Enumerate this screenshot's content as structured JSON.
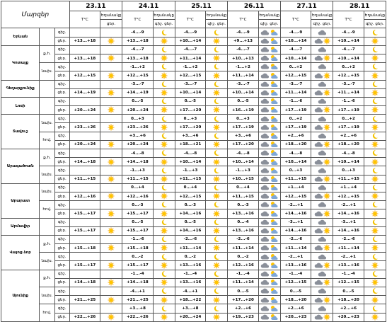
{
  "table": {
    "region_label": "Մարզեր",
    "days": [
      "23.11",
      "24.11",
      "25.11",
      "26.11",
      "27.11",
      "28.11"
    ],
    "temp_label": "T°C",
    "weather_label": "Եղանակը",
    "night_label": "գիշ.",
    "day_label": "ցեր.",
    "groups": [
      {
        "region": "Երևան",
        "subs": [
          {
            "night": [
              null,
              "-4...-9",
              "-4...-9",
              "-4...-9",
              "-4...-9",
              "-4...-9"
            ],
            "day": [
              "+13...+18",
              "+13...+18",
              "+10...+14",
              "+9...+13",
              "+10...+14",
              "+10...+14"
            ]
          }
        ]
      },
      {
        "region": "Կոտայք",
        "subs": [
          {
            "name": "ք.հ.",
            "night": [
              null,
              "-4...-7",
              "-4...-7",
              "-4...-7",
              "-4...-7",
              "-4...-7"
            ],
            "day": [
              "+13...+18",
              "+13...+18",
              "+11...+14",
              "+10...+13",
              "+10...+14",
              "+10...+14"
            ]
          },
          {
            "name": "նախ.",
            "night": [
              null,
              "-1...+2",
              "-1...+2",
              "-1...+2",
              "0...+2",
              "0...+2"
            ],
            "day": [
              "+12...+15",
              "+12...+15",
              "+12...+15",
              "+11...+14",
              "+12...+15",
              "+12...+15"
            ]
          }
        ]
      },
      {
        "region": "Գեղարքունիք",
        "subs": [
          {
            "night": [
              null,
              "-3...-7",
              "-3...-7",
              "-3...-7",
              "-3...-7",
              "-3...-7"
            ],
            "day": [
              "+14...+19",
              "+14...+19",
              "+10...+14",
              "+10...+14",
              "+11...+14",
              "+11...+14"
            ]
          }
        ]
      },
      {
        "region": "Լոռի",
        "subs": [
          {
            "night": [
              null,
              "0...-5",
              "0...-5",
              "0...-5",
              "-1...-6",
              "-1...-6"
            ],
            "day": [
              "+20...+24",
              "+20...+24",
              "+17...+20",
              "+16...+19",
              "+17...+19",
              "+17...+19"
            ]
          }
        ]
      },
      {
        "region": "Տավուշ",
        "subs": [
          {
            "name": "նախ.",
            "night": [
              null,
              "0...+3",
              "0...+3",
              "0...+3",
              "0...+2",
              "0...+2"
            ],
            "day": [
              "+23...+26",
              "+23...+26",
              "+17...+20",
              "+17...+19",
              "+17...+19",
              "+17...+19"
            ]
          },
          {
            "name": "հով.",
            "night": [
              null,
              "+3...+6",
              "+3...+6",
              "+3...+6",
              "+2...+6",
              "+2...+6"
            ],
            "day": [
              "+20...+24",
              "+20...+24",
              "+18...+21",
              "+17...+20",
              "+18...+20",
              "+18...+20"
            ]
          }
        ]
      },
      {
        "region": "Արագածոտն",
        "subs": [
          {
            "name": "ք.հ.",
            "night": [
              null,
              "-4...-8",
              "-4...-8",
              "-4...-8",
              "-4...-8",
              "-4...-8"
            ],
            "day": [
              "+14...+18",
              "+14...+18",
              "+10...+14",
              "+10...+14",
              "+10...+14",
              "+10...+14"
            ]
          },
          {
            "name": "նախ.",
            "night": [
              null,
              "-1...+3",
              "-1...+3",
              "-1...+3",
              "0...+3",
              "0...+3"
            ],
            "day": [
              "+11...+15",
              "+11...+15",
              "+11...+15",
              "+10...+15",
              "+11...+15",
              "+11...+15"
            ]
          }
        ]
      },
      {
        "region": "Արարատ",
        "subs": [
          {
            "name": "նախ.",
            "night": [
              null,
              "0...+4",
              "0...+4",
              "0...+4",
              "+1...+4",
              "+1...+4"
            ],
            "day": [
              "+12...+16",
              "+12...+16",
              "+12...+15",
              "+11...+15",
              "+12...+15",
              "+12...+15"
            ]
          },
          {
            "name": "հով.",
            "night": [
              null,
              "0...-3",
              "0...-3",
              "0...-3",
              "-2...+1",
              "-2...+1"
            ],
            "day": [
              "+15...+17",
              "+15...+17",
              "+14...+16",
              "+13...+16",
              "+14...+16",
              "+14...+16"
            ]
          }
        ]
      },
      {
        "region": "Արմավիր",
        "subs": [
          {
            "night": [
              null,
              "0...-5",
              "0...-5",
              "0...-4",
              "-3...+1",
              "-3...+1"
            ],
            "day": [
              "+15...+17",
              "+15...+17",
              "+14...+16",
              "+13...+16",
              "+14...+16",
              "+14...+16"
            ]
          }
        ]
      },
      {
        "region": "Վայոց ձոր",
        "subs": [
          {
            "name": "ք.հ.",
            "night": [
              null,
              "-1...-6",
              "-2...-6",
              "-2...-6",
              "-2...-6",
              "-2...-6"
            ],
            "day": [
              "+15...+18",
              "+15...+18",
              "+11...+14",
              "+11...+14",
              "+11...+14",
              "+11...+14"
            ]
          },
          {
            "name": "նախ.",
            "night": [
              null,
              "0...-2",
              "0...-2",
              "0...-2",
              "-2...+1",
              "-2...+1"
            ],
            "day": [
              "+15...+17",
              "+15...+17",
              "+13...+16",
              "+12...+16",
              "+13...+16",
              "+13...+16"
            ]
          }
        ]
      },
      {
        "region": "Սյունիք",
        "subs": [
          {
            "name": "ք.հ.",
            "night": [
              null,
              "-1...-4",
              "-1...-4",
              "-1...-4",
              "-1...-4",
              "-1...-4"
            ],
            "day": [
              "+14...+18",
              "+14...+18",
              "+13...+16",
              "+11...+14",
              "+12...+15",
              "+12...+15"
            ]
          },
          {
            "name": "նախ.",
            "night": [
              null,
              "-4...+1",
              "-4...+1",
              "0...-5",
              "0...-5",
              "0...-5"
            ],
            "day": [
              "+21...+25",
              "+21...+25",
              "+18...+22",
              "+17...+20",
              "+18...+20",
              "+18...+20"
            ]
          },
          {
            "name": "հով.",
            "night": [
              null,
              "+3...+8",
              "+3...+8",
              "+2...+6",
              "+2...+6",
              "+2...+6"
            ],
            "day": [
              "+22...+26",
              "+22...+26",
              "+20...+24",
              "+19...+23",
              "+20...+23",
              "+20...+23"
            ]
          }
        ]
      }
    ]
  }
}
